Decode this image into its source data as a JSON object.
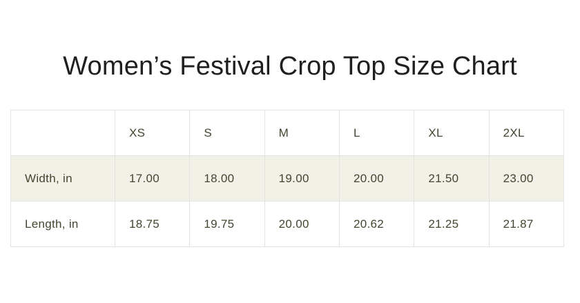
{
  "title": "Women’s Festival Crop Top Size Chart",
  "chart_data": {
    "type": "table",
    "title": "Women’s Festival Crop Top Size Chart",
    "columns": [
      "",
      "XS",
      "S",
      "M",
      "L",
      "XL",
      "2XL"
    ],
    "rows": [
      [
        "Width, in",
        "17.00",
        "18.00",
        "19.00",
        "20.00",
        "21.50",
        "23.00"
      ],
      [
        "Length, in",
        "18.75",
        "19.75",
        "20.00",
        "20.62",
        "21.25",
        "21.87"
      ]
    ],
    "units": "inches",
    "layout_hints": {
      "shaded_rows": [
        0
      ],
      "header_background": "#ffffff",
      "grid": "on"
    }
  },
  "colors": {
    "title_text": "#1f1f1f",
    "table_text": "#45452f",
    "shaded_row_bg": "#f2f1e8",
    "border": "#e4e3df",
    "page_bg": "#ffffff"
  }
}
